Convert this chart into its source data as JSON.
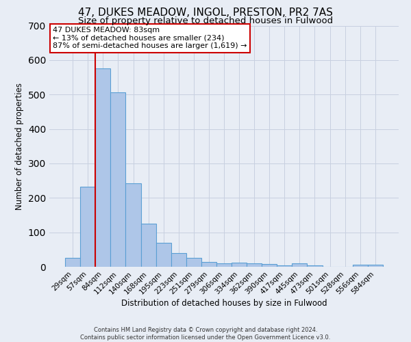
{
  "title": "47, DUKES MEADOW, INGOL, PRESTON, PR2 7AS",
  "subtitle": "Size of property relative to detached houses in Fulwood",
  "xlabel": "Distribution of detached houses by size in Fulwood",
  "ylabel": "Number of detached properties",
  "categories": [
    "29sqm",
    "57sqm",
    "84sqm",
    "112sqm",
    "140sqm",
    "168sqm",
    "195sqm",
    "223sqm",
    "251sqm",
    "279sqm",
    "306sqm",
    "334sqm",
    "362sqm",
    "390sqm",
    "417sqm",
    "445sqm",
    "473sqm",
    "501sqm",
    "528sqm",
    "556sqm",
    "584sqm"
  ],
  "values": [
    25,
    232,
    575,
    507,
    243,
    126,
    70,
    40,
    26,
    14,
    9,
    11,
    9,
    8,
    4,
    9,
    4,
    0,
    0,
    5,
    6
  ],
  "bar_color": "#aec6e8",
  "bar_edge_color": "#5a9fd4",
  "vline_index": 2,
  "vline_color": "#cc0000",
  "annotation_text": "47 DUKES MEADOW: 83sqm\n← 13% of detached houses are smaller (234)\n87% of semi-detached houses are larger (1,619) →",
  "annotation_box_color": "#ffffff",
  "annotation_box_edge": "#cc0000",
  "ylim": [
    0,
    700
  ],
  "yticks": [
    0,
    100,
    200,
    300,
    400,
    500,
    600,
    700
  ],
  "grid_color": "#c8d0e0",
  "bg_color": "#e8edf5",
  "footer_line1": "Contains HM Land Registry data © Crown copyright and database right 2024.",
  "footer_line2": "Contains public sector information licensed under the Open Government Licence v3.0.",
  "title_fontsize": 11,
  "subtitle_fontsize": 9.5
}
